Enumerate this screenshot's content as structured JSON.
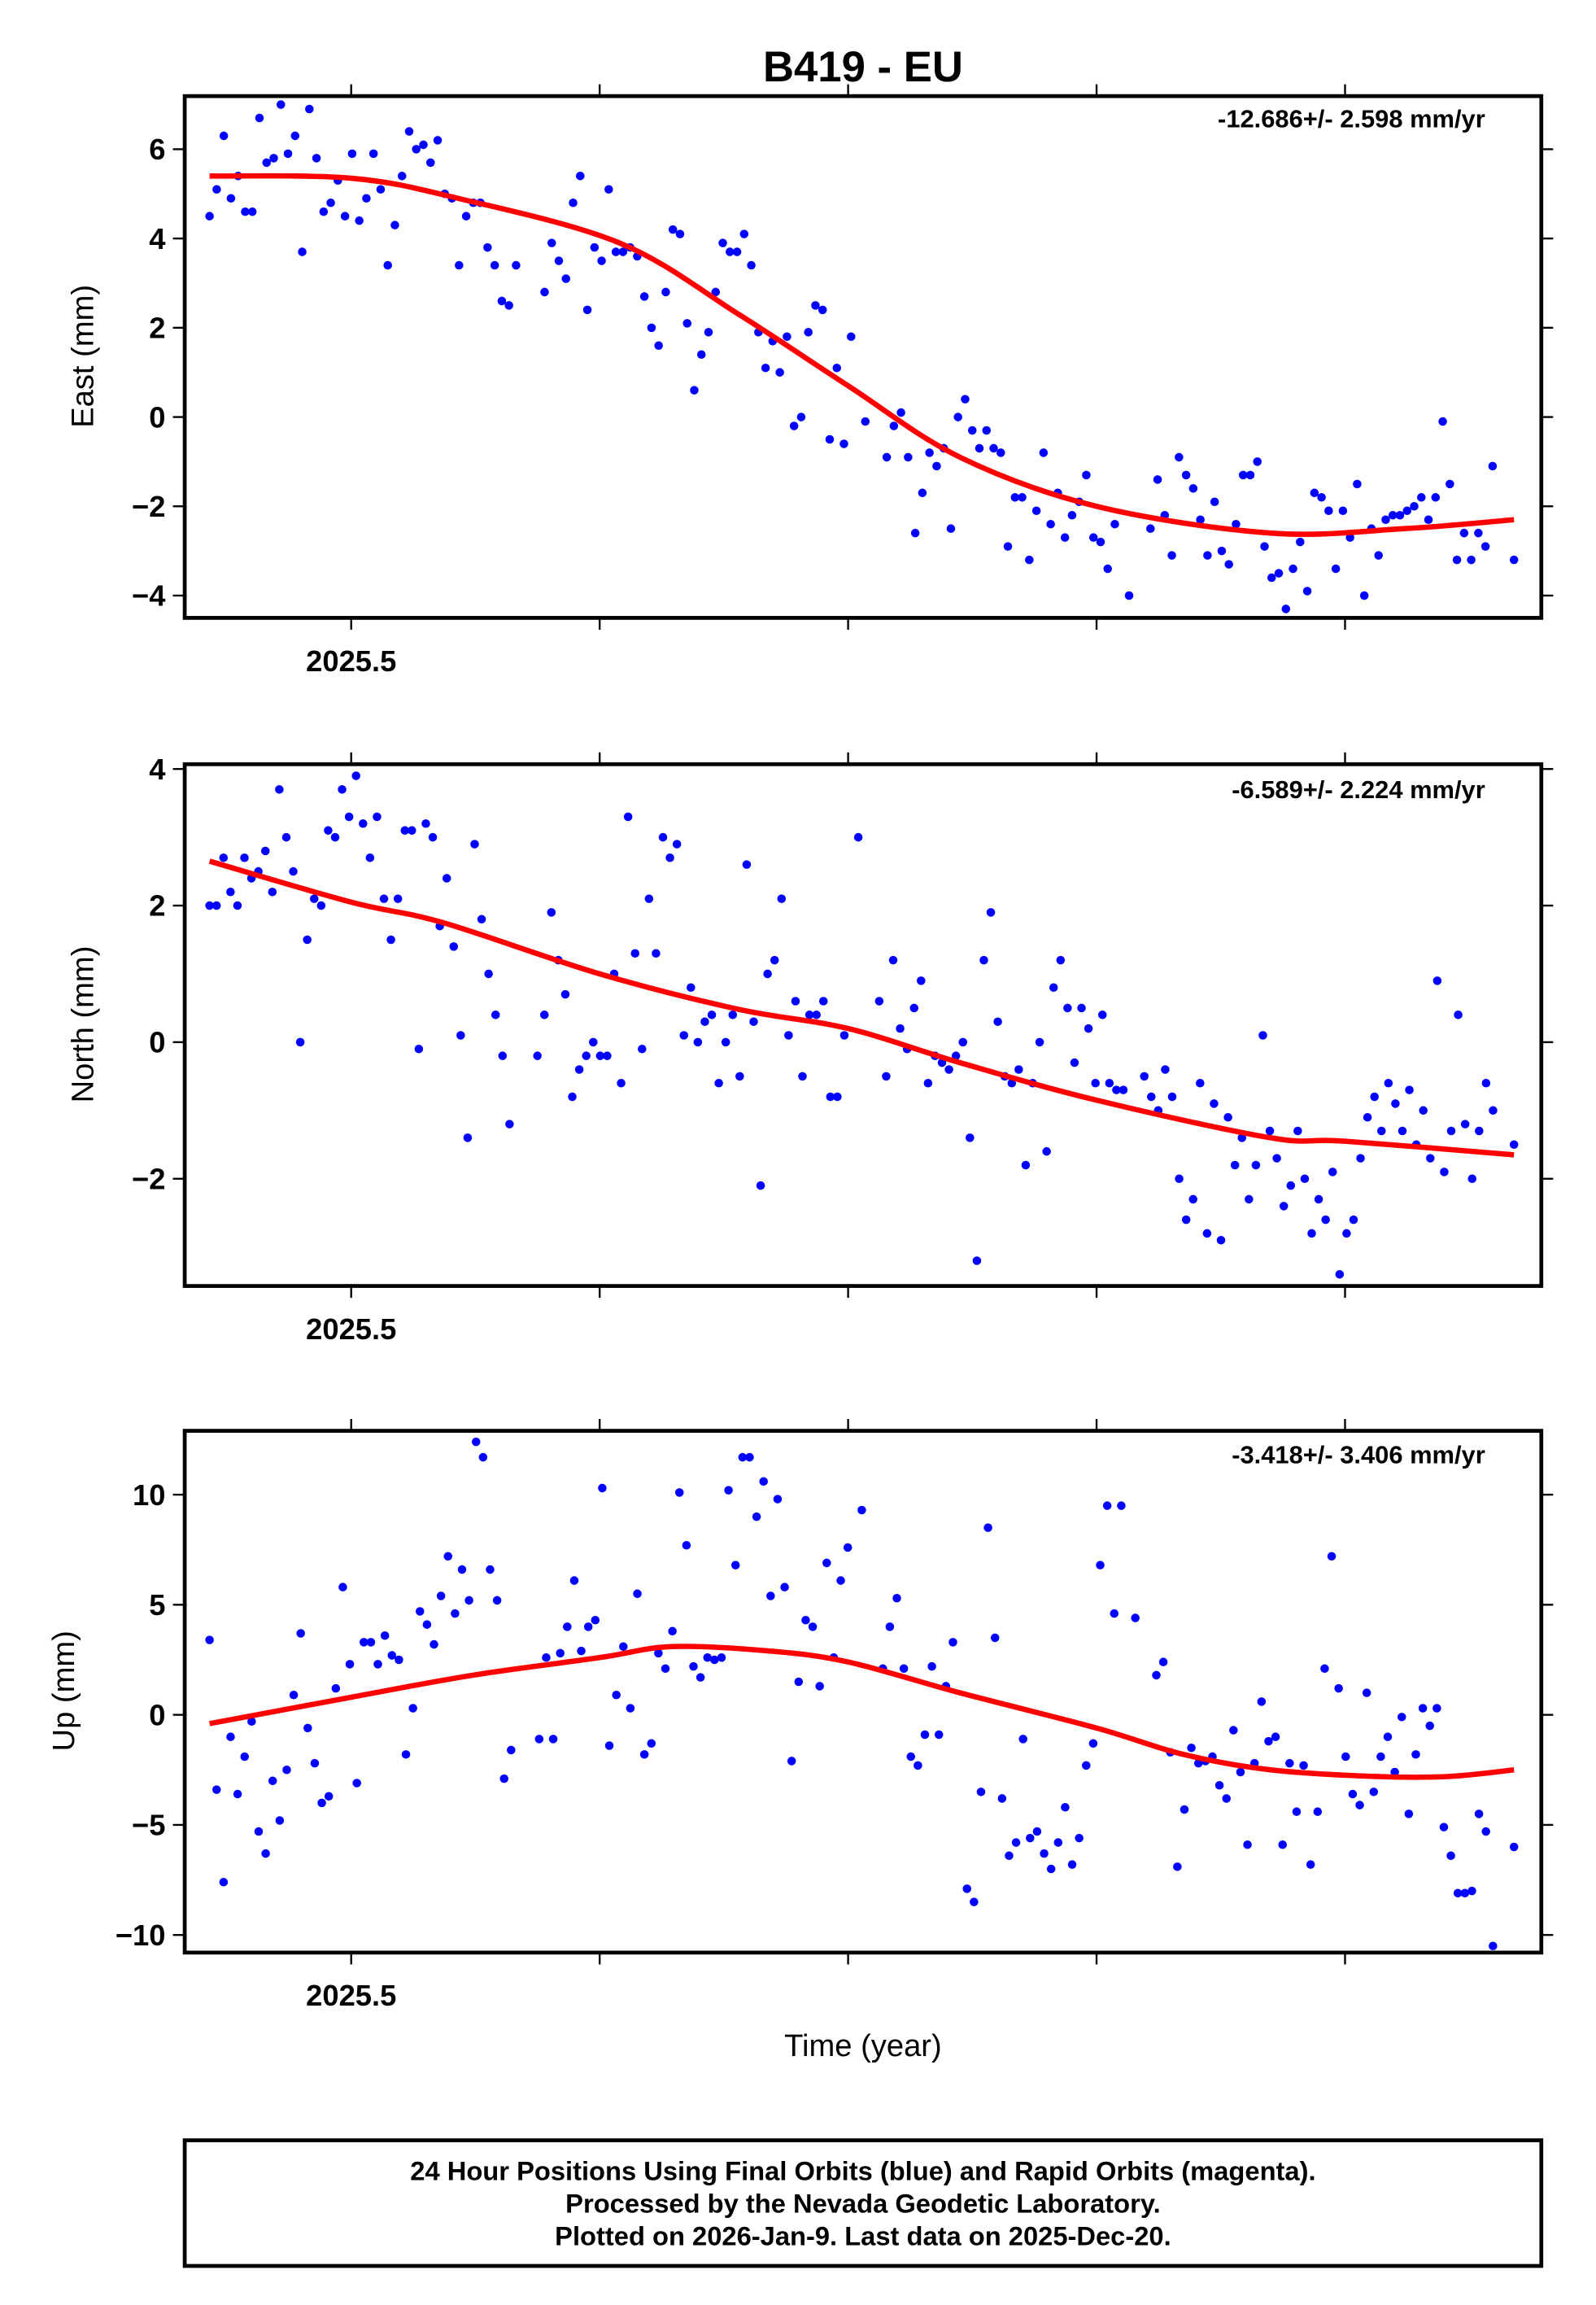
{
  "title": "B419 - EU",
  "xlabel": "Time (year)",
  "footer": {
    "line1": "24 Hour Positions Using Final Orbits (blue) and Rapid Orbits (magenta).",
    "line2": "Processed by the Nevada Geodetic Laboratory.",
    "line3": "Plotted on 2026-Jan-9. Last data on 2025-Dec-20."
  },
  "chart_data": [
    {
      "type": "scatter",
      "ylabel": "East (mm)",
      "rate": "-12.686+/- 2.598 mm/yr",
      "xlim": [
        2025.433,
        2025.979
      ],
      "ylim": [
        -4.5,
        7.19
      ],
      "xticks": [
        2025.5,
        2025.6,
        2025.7,
        2025.8,
        2025.9
      ],
      "xtick_labels": [
        "2025.5",
        "",
        "",
        "",
        ""
      ],
      "yticks": [
        6,
        4,
        2,
        0,
        -2,
        -4
      ],
      "ytick_labels": [
        "6",
        "4",
        "2",
        "0",
        "−2",
        "−4"
      ],
      "series": [
        {
          "name": "Final Orbits",
          "color": "#0000ff",
          "x_start": 2025.443,
          "x_end": 2025.968,
          "values": [
            4.5,
            5.1,
            6.3,
            4.9,
            5.4,
            4.6,
            4.6,
            6.7,
            5.7,
            5.8,
            7.0,
            5.9,
            6.3,
            3.7,
            6.9,
            5.8,
            4.6,
            4.8,
            5.3,
            4.5,
            5.9,
            4.4,
            4.9,
            5.9,
            5.1,
            3.4,
            4.3,
            5.4,
            6.4,
            6.0,
            6.1,
            5.7,
            6.2,
            5.0,
            4.9,
            3.4,
            4.5,
            4.8,
            4.8,
            3.8,
            3.4,
            2.6,
            2.5,
            3.4,
            null,
            null,
            null,
            2.8,
            3.9,
            3.5,
            3.1,
            4.8,
            5.4,
            2.4,
            3.8,
            3.5,
            5.1,
            3.7,
            3.7,
            3.8,
            3.6,
            2.7,
            2.0,
            1.6,
            2.8,
            4.2,
            4.1,
            2.1,
            0.6,
            1.4,
            1.9,
            2.8,
            3.9,
            3.7,
            3.7,
            4.1,
            3.4,
            1.9,
            1.1,
            1.7,
            1.0,
            1.8,
            -0.2,
            0,
            1.9,
            2.5,
            2.4,
            -0.5,
            1.1,
            -0.6,
            1.8,
            null,
            -0.1,
            null,
            null,
            -0.9,
            -0.2,
            0.1,
            -0.9,
            -2.6,
            -1.7,
            -0.8,
            -1.1,
            -0.7,
            -2.5,
            0.0,
            0.4,
            -0.3,
            -0.7,
            -0.3,
            -0.7,
            -0.8,
            -2.9,
            -1.8,
            -1.8,
            -3.2,
            -2.1,
            -0.8,
            -2.4,
            -1.7,
            -2.7,
            -2.2,
            -1.9,
            -1.3,
            -2.7,
            -2.8,
            -3.4,
            -2.4,
            null,
            -4.0,
            null,
            null,
            -2.5,
            -1.4,
            -2.2,
            -3.1,
            -0.9,
            -1.3,
            -1.6,
            -2.3,
            -3.1,
            -1.9,
            -3.0,
            -3.3,
            -2.4,
            -1.3,
            -1.3,
            -1.0,
            -2.9,
            -3.6,
            -3.5,
            -4.3,
            -3.4,
            -2.8,
            -3.9,
            -1.7,
            -1.8,
            -2.1,
            -3.4,
            -2.1,
            -2.7,
            -1.5,
            -4.0,
            -2.5,
            -3.1,
            -2.3,
            -2.2,
            -2.2,
            -2.1,
            -2.0,
            -1.8,
            -2.3,
            -1.8,
            -0.1,
            -1.5,
            -3.2,
            -2.6,
            -3.2,
            -2.6,
            -2.9,
            -1.1,
            null,
            null,
            -3.2
          ]
        }
      ],
      "fit": {
        "name": "fit",
        "color": "#ff0000",
        "x": [
          2025.443,
          2025.5,
          2025.543,
          2025.608,
          2025.656,
          2025.7,
          2025.745,
          2025.8,
          2025.87,
          2025.924,
          2025.968
        ],
        "y": [
          5.4,
          5.35,
          4.9,
          3.9,
          2.3,
          0.7,
          -0.9,
          -2.0,
          -2.6,
          -2.5,
          -2.3
        ]
      }
    },
    {
      "type": "scatter",
      "ylabel": "North (mm)",
      "rate": "-6.589+/- 2.224 mm/yr",
      "xlim": [
        2025.433,
        2025.979
      ],
      "ylim": [
        -3.57,
        4.07
      ],
      "xticks": [
        2025.5,
        2025.6,
        2025.7,
        2025.8,
        2025.9
      ],
      "xtick_labels": [
        "2025.5",
        "",
        "",
        "",
        ""
      ],
      "yticks": [
        4,
        2,
        0,
        -2
      ],
      "ytick_labels": [
        "4",
        "2",
        "0",
        "−2"
      ],
      "series": [
        {
          "name": "Final Orbits",
          "color": "#0000ff",
          "x_start": 2025.443,
          "x_end": 2025.968,
          "values": [
            2.0,
            2.0,
            2.7,
            2.2,
            2.0,
            2.7,
            2.4,
            2.5,
            2.8,
            2.2,
            3.7,
            3.0,
            2.5,
            0.0,
            1.5,
            2.1,
            2.0,
            3.1,
            3.0,
            3.7,
            3.3,
            3.9,
            3.2,
            2.7,
            3.3,
            2.1,
            1.5,
            2.1,
            3.1,
            3.1,
            -0.1,
            3.2,
            3.0,
            1.7,
            2.4,
            1.4,
            0.1,
            -1.4,
            2.9,
            1.8,
            1.0,
            0.4,
            -0.2,
            -1.2,
            null,
            null,
            null,
            -0.2,
            0.4,
            1.9,
            1.2,
            0.7,
            -0.8,
            -0.4,
            -0.2,
            0.0,
            -0.2,
            -0.2,
            1.0,
            -0.6,
            3.3,
            1.3,
            -0.1,
            2.1,
            1.3,
            3.0,
            2.7,
            2.9,
            0.1,
            0.8,
            0.0,
            0.3,
            0.4,
            -0.6,
            0.0,
            0.4,
            -0.5,
            2.6,
            0.3,
            -2.1,
            1.0,
            1.2,
            2.1,
            0.1,
            0.6,
            -0.5,
            0.4,
            0.4,
            0.6,
            -0.8,
            -0.8,
            0.1,
            null,
            3.0,
            null,
            null,
            0.6,
            -0.5,
            1.2,
            0.2,
            -0.1,
            0.5,
            0.9,
            -0.6,
            -0.2,
            -0.3,
            -0.4,
            -0.2,
            0.0,
            -1.4,
            -3.2,
            1.2,
            1.9,
            0.3,
            -0.5,
            -0.6,
            -0.4,
            -1.8,
            -0.6,
            0.0,
            -1.6,
            0.8,
            1.2,
            0.5,
            -0.3,
            0.5,
            0.2,
            -0.6,
            0.4,
            -0.6,
            -0.7,
            -0.7,
            null,
            null,
            -0.5,
            -0.8,
            -1.0,
            -0.4,
            -0.8,
            -2.0,
            -2.6,
            -2.3,
            -0.6,
            -2.8,
            -0.9,
            -2.9,
            -1.1,
            -1.8,
            -1.4,
            -2.3,
            -1.8,
            0.1,
            -1.3,
            -1.7,
            -2.4,
            -2.1,
            -1.3,
            -2.0,
            -2.8,
            -2.3,
            -2.6,
            -1.9,
            -3.4,
            -2.8,
            -2.6,
            -1.7,
            -1.1,
            -0.8,
            -1.3,
            -0.6,
            -0.9,
            -1.3,
            -0.7,
            -1.5,
            -1.0,
            -1.7,
            0.9,
            -1.9,
            -1.3,
            0.4,
            -1.2,
            -2.0,
            -1.3,
            -0.6,
            -1.0,
            null,
            null,
            -1.5
          ]
        }
      ],
      "fit": {
        "name": "fit",
        "color": "#ff0000",
        "x": [
          2025.443,
          2025.5,
          2025.537,
          2025.6,
          2025.656,
          2025.7,
          2025.745,
          2025.8,
          2025.87,
          2025.9,
          2025.968
        ],
        "y": [
          2.65,
          2.05,
          1.75,
          1.0,
          0.48,
          0.2,
          -0.3,
          -0.85,
          -1.4,
          -1.45,
          -1.65
        ]
      }
    },
    {
      "type": "scatter",
      "ylabel": "Up (mm)",
      "rate": "-3.418+/- 3.406 mm/yr",
      "xlim": [
        2025.433,
        2025.979
      ],
      "ylim": [
        -10.8,
        12.9
      ],
      "xticks": [
        2025.5,
        2025.6,
        2025.7,
        2025.8,
        2025.9
      ],
      "xtick_labels": [
        "2025.5",
        "",
        "",
        "",
        ""
      ],
      "yticks": [
        10,
        5,
        0,
        -5,
        -10
      ],
      "ytick_labels": [
        "10",
        "5",
        "0",
        "−5",
        "−10"
      ],
      "series": [
        {
          "name": "Final Orbits",
          "color": "#0000ff",
          "x_start": 2025.443,
          "x_end": 2025.968,
          "values": [
            3.4,
            -3.4,
            -7.6,
            -1.0,
            -3.6,
            -1.9,
            -0.3,
            -5.3,
            -6.3,
            -3.0,
            -4.8,
            -2.5,
            0.9,
            3.7,
            -0.6,
            -2.2,
            -4.0,
            -3.7,
            1.2,
            5.8,
            2.3,
            -3.1,
            3.3,
            3.3,
            2.3,
            3.6,
            2.7,
            2.5,
            -1.8,
            0.3,
            4.7,
            4.1,
            3.2,
            5.4,
            7.2,
            4.6,
            6.6,
            5.2,
            12.4,
            11.7,
            6.6,
            5.2,
            -2.9,
            -1.6,
            null,
            null,
            null,
            -1.1,
            2.6,
            -1.1,
            2.8,
            4.0,
            6.1,
            2.9,
            4.0,
            4.3,
            10.3,
            -1.4,
            0.9,
            3.1,
            0.3,
            5.5,
            -1.8,
            -1.3,
            2.8,
            2.1,
            3.8,
            10.1,
            7.7,
            2.2,
            1.7,
            2.6,
            2.5,
            2.6,
            10.2,
            6.8,
            11.7,
            11.7,
            9.0,
            10.6,
            5.4,
            9.8,
            5.8,
            -2.1,
            1.5,
            4.3,
            4.0,
            1.3,
            6.9,
            2.6,
            6.1,
            7.6,
            null,
            9.3,
            null,
            null,
            2.1,
            4.0,
            5.3,
            2.1,
            -1.9,
            -2.3,
            -0.9,
            2.2,
            -0.9,
            1.3,
            3.3,
            null,
            -7.9,
            -8.5,
            -3.5,
            8.5,
            3.5,
            -3.8,
            -6.4,
            -5.8,
            -1.1,
            -5.6,
            -5.3,
            -6.3,
            -7.0,
            -5.8,
            -4.2,
            -6.8,
            -5.6,
            -2.3,
            -1.3,
            6.8,
            9.5,
            4.6,
            9.5,
            null,
            4.4,
            null,
            null,
            1.8,
            2.4,
            -1.7,
            -6.9,
            -4.3,
            -1.5,
            -2.2,
            -2.1,
            -1.9,
            -3.2,
            -3.8,
            -0.7,
            -2.6,
            -5.9,
            -2.2,
            0.6,
            -1.2,
            -1.0,
            -5.9,
            -2.2,
            -4.4,
            -2.3,
            -6.8,
            -4.4,
            2.1,
            7.2,
            1.2,
            -1.9,
            -3.6,
            -4.1,
            1.0,
            -3.5,
            -1.9,
            -1.0,
            -2.6,
            -0.1,
            -4.5,
            -1.8,
            0.3,
            -0.5,
            0.3,
            -5.1,
            -6.4,
            -8.1,
            -8.1,
            -8.0,
            -4.5,
            -5.3,
            -10.5,
            null,
            null,
            -6.0
          ]
        }
      ],
      "fit": {
        "name": "fit",
        "color": "#ff0000",
        "x": [
          2025.443,
          2025.5,
          2025.549,
          2025.6,
          2025.629,
          2025.668,
          2025.7,
          2025.745,
          2025.8,
          2025.835,
          2025.87,
          2025.912,
          2025.942,
          2025.968
        ],
        "y": [
          -0.4,
          0.8,
          1.8,
          2.6,
          3.1,
          2.9,
          2.4,
          1.0,
          -0.6,
          -1.8,
          -2.5,
          -2.8,
          -2.8,
          -2.5
        ]
      }
    }
  ]
}
